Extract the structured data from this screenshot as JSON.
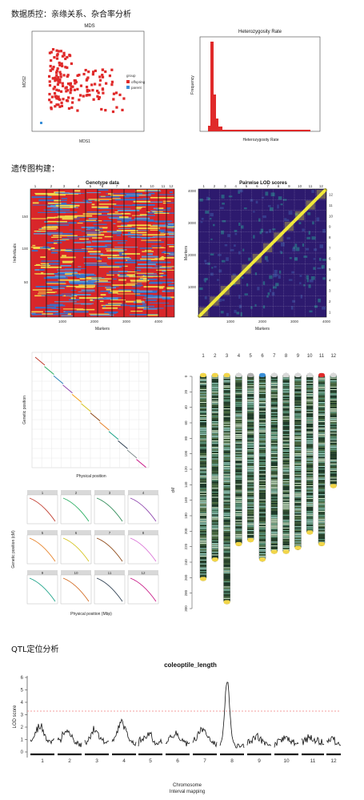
{
  "sections": {
    "s1": "数据质控：亲缘关系、杂合率分析",
    "s2": "遗传图构建：",
    "s3": "QTL定位分析"
  },
  "mds": {
    "title": "MDS",
    "xlabel": "MDS1",
    "ylabel": "MDS2",
    "legend_title": "group",
    "legend_items": [
      "offspring",
      "parent"
    ],
    "colors": {
      "offspring": "#e02a2a",
      "parent": "#3a8fd8"
    }
  },
  "het": {
    "title": "Heterozygosity Rate",
    "xlabel": "Heterozygosity Rate",
    "ylabel": "Frequency"
  },
  "genotype": {
    "title": "Genotype data",
    "xlabel": "Markers",
    "ylabel": "Individuals",
    "chrom_labels": [
      "1",
      "2",
      "3",
      "4",
      "5",
      "6",
      "7",
      "8",
      "9",
      "10",
      "11",
      "12"
    ],
    "x_ticks": [
      "1000",
      "2000",
      "3000",
      "4000"
    ],
    "y_ticks": [
      "150",
      "100",
      "50"
    ]
  },
  "lod": {
    "title": "Pairwise LOD scores",
    "xlabel": "Markers",
    "ylabel": "Markers",
    "chrom_labels": [
      "1",
      "2",
      "3",
      "4",
      "5",
      "6",
      "7",
      "8",
      "9",
      "10",
      "11",
      "12"
    ],
    "x_ticks": [
      "1000",
      "2000",
      "3000",
      "4000"
    ],
    "y_ticks": [
      "4000",
      "3000",
      "2000",
      "1000"
    ]
  },
  "collinearity": {
    "xlabel": "Physical position",
    "ylabel": "Genetic position"
  },
  "facets": {
    "labels": [
      "1",
      "2",
      "3",
      "4",
      "5",
      "6",
      "7",
      "8",
      "9",
      "10",
      "11",
      "12"
    ],
    "xlabel": "Physical position (Mbp)",
    "ylabel": "Genetic position (cM)"
  },
  "linkage_map": {
    "chrom_labels": [
      "1",
      "2",
      "3",
      "4",
      "5",
      "6",
      "7",
      "8",
      "9",
      "10",
      "11",
      "12"
    ],
    "axis_label": "cM",
    "ticks": [
      "0",
      "20",
      "40",
      "60",
      "80",
      "100",
      "120",
      "140",
      "160",
      "180",
      "200",
      "220",
      "240",
      "260",
      "280",
      "300"
    ]
  },
  "qtl": {
    "title": "coleoptile_length",
    "ylabel": "LOD score",
    "xlabel": "Chromosome",
    "subtitle": "Interval mapping",
    "chrom_labels": [
      "1",
      "2",
      "3",
      "4",
      "5",
      "6",
      "7",
      "8",
      "9",
      "10",
      "11",
      "12"
    ],
    "y_ticks": [
      "0",
      "1",
      "2",
      "3",
      "4",
      "5",
      "6"
    ]
  }
}
